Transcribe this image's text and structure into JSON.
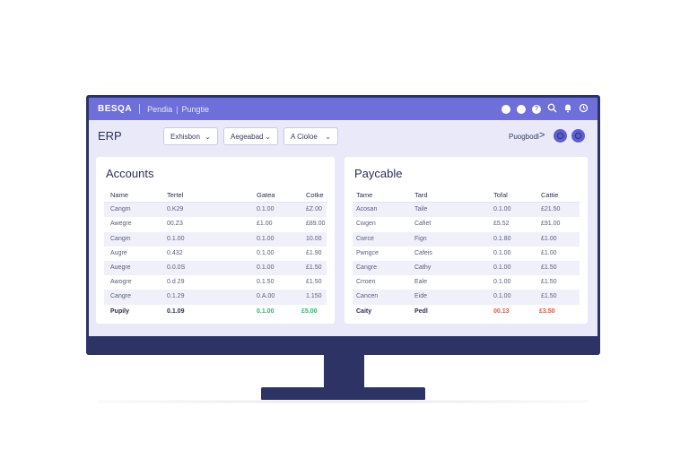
{
  "topbar": {
    "brand": "BESQA",
    "crumbs": [
      "Pendia",
      "Pungtie"
    ],
    "icons": [
      "circle-icon",
      "circle-icon",
      "help-icon",
      "search-icon",
      "bell-icon",
      "clock-icon"
    ],
    "accent": "#6f6fd9"
  },
  "toolbar": {
    "title": "ERP",
    "filters": [
      {
        "label": "Exhisbon"
      },
      {
        "label": "Aegeabad"
      },
      {
        "label": "A  Cioloe"
      }
    ],
    "page_label": "Puogbodl",
    "next_symbol": ">"
  },
  "accounts": {
    "title": "Accounts",
    "columns": [
      "Name",
      "Tertel",
      "Gatea",
      "Cotke"
    ],
    "rows": [
      [
        "Cangm",
        "0.K29",
        "0.1.00",
        "£Z.00"
      ],
      [
        "Awegre",
        "00.Z3",
        "£1.00",
        "£89.00"
      ],
      [
        "Cangm",
        "0.1.00",
        "0.1.00",
        "10.00"
      ],
      [
        "Augre",
        "0.432",
        "0.1.00",
        "£1.90"
      ],
      [
        "Auegre",
        "0.0.0S",
        "0.1.00",
        "£1.50"
      ],
      [
        "Awogre",
        "0.d 29",
        "0.1.50",
        "£1.50"
      ],
      [
        "Cangre",
        "0.1.29",
        "0.A.00",
        "1.150"
      ]
    ],
    "total": [
      "Pupily",
      "0.1.09",
      "0.1.00",
      "£5.00"
    ]
  },
  "payable": {
    "title": "Paycable",
    "columns": [
      "Tame",
      "Tard",
      "Tofal",
      "Cattie"
    ],
    "rows": [
      [
        "Acosan",
        "Taile",
        "0.1.00",
        "£21.50"
      ],
      [
        "Cwgen",
        "Cafiet",
        "£5.52",
        "£91.00"
      ],
      [
        "Cwrce",
        "Fign",
        "0.1.80",
        "£1.00"
      ],
      [
        "Pwngce",
        "Cafeis",
        "0.1.00",
        "£1.00"
      ],
      [
        "Cangre",
        "Cathy",
        "0.1.00",
        "£1.50"
      ],
      [
        "Crroen",
        "Eale",
        "0.1.00",
        "£1.50"
      ],
      [
        "Cancen",
        "Eide",
        "0.1.00",
        "£1.50"
      ]
    ],
    "total": [
      "Caity",
      "Pedl",
      "00.13",
      "£3.50"
    ]
  }
}
